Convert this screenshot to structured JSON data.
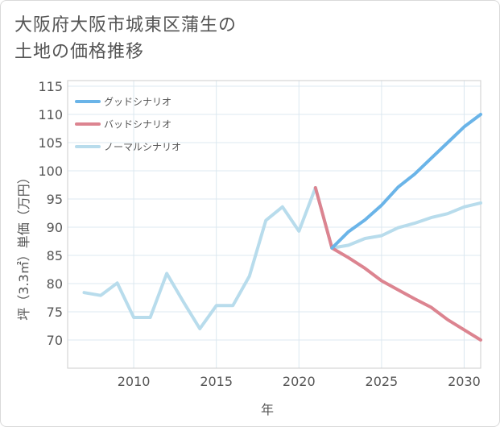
{
  "chart_data": {
    "type": "line",
    "title_line1": "大阪府大阪市城東区蒲生の",
    "title_line2": "土地の価格推移",
    "xlabel": "年",
    "ylabel": "坪（3.3㎡）単価（万円）",
    "xlim": [
      2006,
      2031
    ],
    "ylim": [
      65,
      116
    ],
    "x_ticks": [
      2010,
      2015,
      2020,
      2025,
      2030
    ],
    "y_ticks": [
      70,
      75,
      80,
      85,
      90,
      95,
      100,
      105,
      110,
      115
    ],
    "grid": true,
    "legend_position": "top-left",
    "series": [
      {
        "name": "グッドシナリオ",
        "color": "#6ab4e8",
        "x": [
          2022,
          2023,
          2024,
          2025,
          2026,
          2027,
          2028,
          2029,
          2030,
          2031
        ],
        "values": [
          86.3,
          89.2,
          91.3,
          93.9,
          97.1,
          99.4,
          102.2,
          105.0,
          107.8,
          110.0
        ]
      },
      {
        "name": "バッドシナリオ",
        "color": "#dc8490",
        "x": [
          2021,
          2022,
          2023,
          2024,
          2025,
          2026,
          2027,
          2028,
          2029,
          2030,
          2031
        ],
        "values": [
          97.0,
          86.3,
          84.6,
          82.7,
          80.5,
          78.9,
          77.3,
          75.8,
          73.6,
          71.8,
          70.0
        ]
      },
      {
        "name": "ノーマルシナリオ",
        "color": "#b8dcec",
        "x": [
          2007,
          2008,
          2009,
          2010,
          2011,
          2012,
          2013,
          2014,
          2015,
          2016,
          2017,
          2018,
          2019,
          2020,
          2021,
          2022,
          2023,
          2024,
          2025,
          2026,
          2027,
          2028,
          2029,
          2030,
          2031
        ],
        "values": [
          78.4,
          77.9,
          80.1,
          74.0,
          74.0,
          81.8,
          76.8,
          72.0,
          76.1,
          76.1,
          81.3,
          91.2,
          93.6,
          89.3,
          97.0,
          86.3,
          86.8,
          88.0,
          88.5,
          89.9,
          90.7,
          91.7,
          92.4,
          93.6,
          94.3
        ]
      }
    ]
  }
}
